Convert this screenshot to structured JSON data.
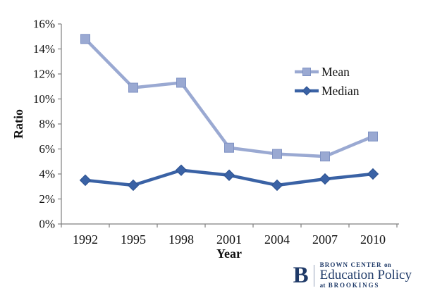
{
  "chart_data": {
    "type": "line",
    "title": "",
    "categories": [
      "1992",
      "1995",
      "1998",
      "2001",
      "2004",
      "2007",
      "2010"
    ],
    "series": [
      {
        "name": "Mean",
        "values": [
          14.8,
          10.9,
          11.3,
          6.1,
          5.6,
          5.4,
          7.0
        ],
        "color": "#9aa9d2",
        "border_color": "#7f92c3",
        "marker": "square"
      },
      {
        "name": "Median",
        "values": [
          3.5,
          3.1,
          4.3,
          3.9,
          3.1,
          3.6,
          4.0
        ],
        "color": "#3a62a5",
        "border_color": "#2c5190",
        "marker": "diamond"
      }
    ],
    "xlabel": "Year",
    "ylabel": "Ratio",
    "ylim": [
      0,
      16
    ],
    "ytick_step": 2,
    "ytick_labels": [
      "0%",
      "2%",
      "4%",
      "6%",
      "8%",
      "10%",
      "12%",
      "14%",
      "16%"
    ],
    "grid": false,
    "legend_position": "inside-upper-right",
    "legend_labels": [
      "Mean",
      "Median"
    ]
  },
  "branding": {
    "initial": "B",
    "top_line_caps": "BROWN CENTER",
    "top_line_small": "on",
    "main_line": "Education Policy",
    "bottom_line_small": "at",
    "bottom_line_caps": "BROOKINGS",
    "color": "#1f3a68"
  },
  "style": {
    "background": "#ffffff",
    "axis_color": "#7f7f7f",
    "text_color": "#111111"
  }
}
